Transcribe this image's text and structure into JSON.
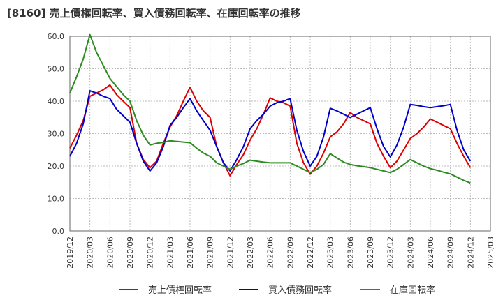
{
  "title": "[8160]  売上債権回転率、買入債務回転率、在庫回転率の推移",
  "chart_data": {
    "type": "line",
    "title": "[8160]  売上債権回転率、買入債務回転率、在庫回転率の推移",
    "xlabel": "",
    "ylabel": "",
    "ylim": [
      0,
      60
    ],
    "y_ticks": [
      "0.0",
      "10.0",
      "20.0",
      "30.0",
      "40.0",
      "50.0",
      "60.0"
    ],
    "x_tick_labels": [
      "2019/12",
      "2020/03",
      "2020/06",
      "2020/09",
      "2020/12",
      "2021/03",
      "2021/06",
      "2021/09",
      "2021/12",
      "2022/03",
      "2022/06",
      "2022/09",
      "2022/12",
      "2023/03",
      "2023/06",
      "2023/09",
      "2023/12",
      "2024/03",
      "2024/06",
      "2024/09",
      "2024/12",
      "2025/03"
    ],
    "x": [
      "2019/12",
      "2020/01",
      "2020/02",
      "2020/03",
      "2020/04",
      "2020/05",
      "2020/06",
      "2020/07",
      "2020/08",
      "2020/09",
      "2020/10",
      "2020/11",
      "2020/12",
      "2021/01",
      "2021/02",
      "2021/03",
      "2021/04",
      "2021/05",
      "2021/06",
      "2021/07",
      "2021/08",
      "2021/09",
      "2021/10",
      "2021/11",
      "2021/12",
      "2022/01",
      "2022/02",
      "2022/03",
      "2022/04",
      "2022/05",
      "2022/06",
      "2022/07",
      "2022/08",
      "2022/09",
      "2022/10",
      "2022/11",
      "2022/12",
      "2023/01",
      "2023/02",
      "2023/03",
      "2023/04",
      "2023/05",
      "2023/06",
      "2023/07",
      "2023/08",
      "2023/09",
      "2023/10",
      "2023/11",
      "2023/12",
      "2024/01",
      "2024/02",
      "2024/03",
      "2024/04",
      "2024/05",
      "2024/06",
      "2024/07",
      "2024/08",
      "2024/09",
      "2024/10",
      "2024/11",
      "2024/12"
    ],
    "grid": true,
    "legend_position": "bottom",
    "series": [
      {
        "name": "売上債権回転率",
        "color": "#dd0000",
        "values": [
          25.5,
          29.5,
          34.0,
          41.5,
          42.5,
          43.5,
          45.0,
          42.0,
          40.0,
          38.0,
          27.0,
          22.0,
          19.5,
          21.5,
          27.0,
          32.0,
          35.5,
          40.0,
          44.3,
          40.0,
          37.0,
          35.0,
          26.0,
          21.0,
          17.0,
          20.5,
          23.5,
          28.0,
          31.5,
          36.0,
          41.0,
          40.0,
          39.5,
          38.5,
          27.0,
          21.0,
          17.5,
          20.0,
          24.0,
          29.0,
          30.5,
          33.0,
          36.5,
          35.0,
          34.0,
          33.0,
          27.0,
          23.0,
          19.5,
          21.5,
          25.0,
          28.5,
          30.0,
          32.0,
          34.5,
          33.5,
          32.5,
          31.5,
          27.0,
          23.0,
          19.5
        ]
      },
      {
        "name": "買入債務回転率",
        "color": "#0000cc",
        "values": [
          23.0,
          27.0,
          33.0,
          43.2,
          42.5,
          41.5,
          40.8,
          37.5,
          35.5,
          33.5,
          27.0,
          21.5,
          18.5,
          21.0,
          26.0,
          32.5,
          35.0,
          38.0,
          40.8,
          37.0,
          34.0,
          31.0,
          26.0,
          21.0,
          18.5,
          22.0,
          26.0,
          31.5,
          34.0,
          36.0,
          38.5,
          39.5,
          40.0,
          40.8,
          31.0,
          24.5,
          20.0,
          23.0,
          29.0,
          37.8,
          37.0,
          36.0,
          35.0,
          36.0,
          37.0,
          38.0,
          31.5,
          26.0,
          22.8,
          26.5,
          32.0,
          39.0,
          38.7,
          38.3,
          38.0,
          38.3,
          38.6,
          39.0,
          31.0,
          25.0,
          21.5
        ]
      },
      {
        "name": "在庫回転率",
        "color": "#2e8b22",
        "values": [
          42.5,
          47.5,
          53.0,
          60.5,
          55.0,
          51.0,
          47.0,
          44.5,
          42.0,
          40.0,
          34.0,
          29.5,
          26.5,
          27.0,
          27.3,
          27.8,
          27.6,
          27.4,
          27.2,
          25.5,
          24.0,
          23.0,
          21.0,
          20.0,
          19.0,
          20.0,
          20.8,
          21.8,
          21.5,
          21.2,
          21.0,
          21.0,
          21.0,
          21.0,
          20.0,
          19.0,
          18.0,
          19.0,
          20.5,
          23.8,
          22.5,
          21.2,
          20.5,
          20.1,
          19.8,
          19.5,
          19.0,
          18.5,
          18.0,
          19.0,
          20.5,
          22.0,
          21.0,
          20.0,
          19.2,
          18.7,
          18.1,
          17.6,
          16.6,
          15.6,
          14.8
        ]
      }
    ]
  }
}
